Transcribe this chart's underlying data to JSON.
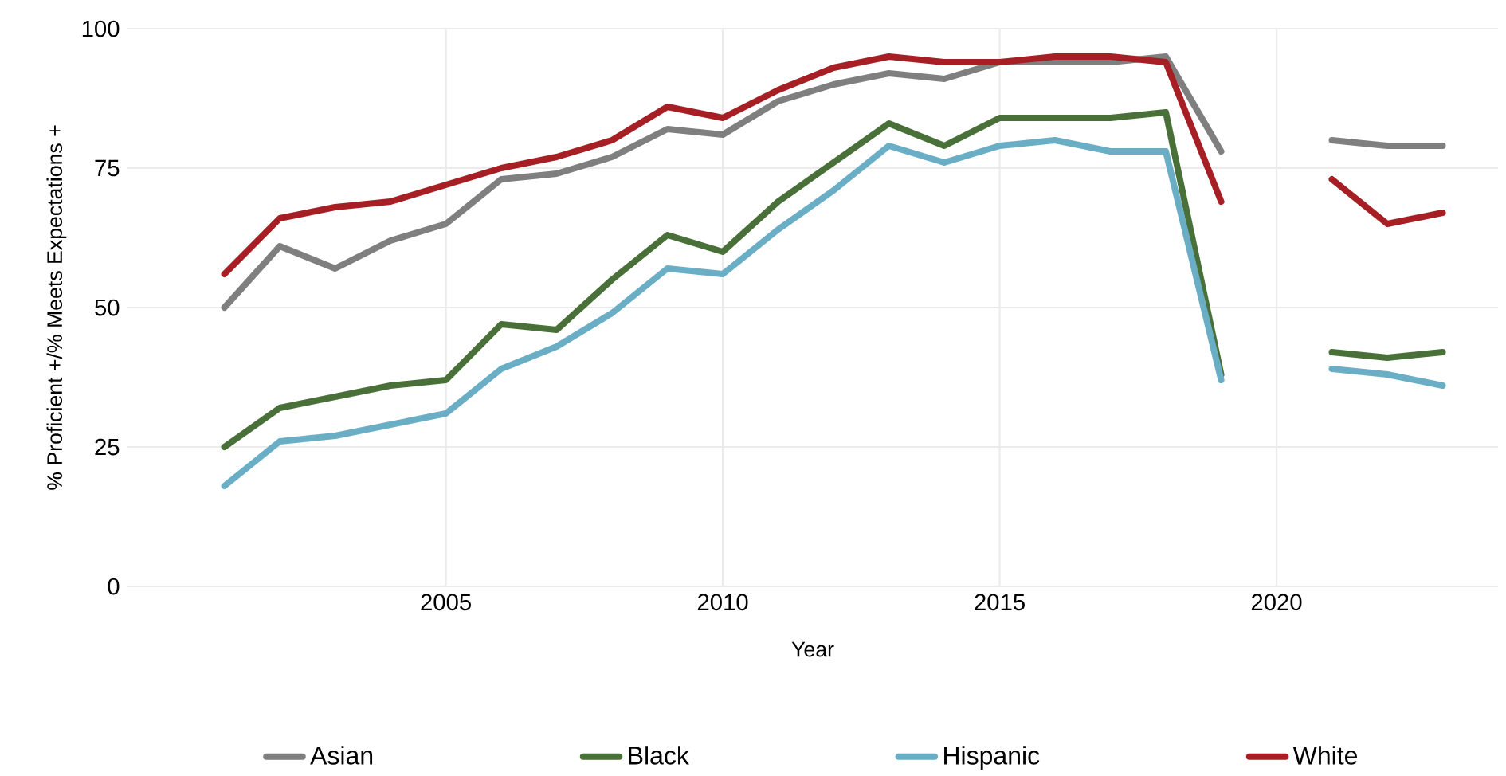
{
  "chart_data": {
    "type": "line",
    "xlabel": "Year",
    "ylabel": "% Proficient +/% Meets Expectations +",
    "x": [
      2001,
      2002,
      2003,
      2004,
      2005,
      2006,
      2007,
      2008,
      2009,
      2010,
      2011,
      2012,
      2013,
      2014,
      2015,
      2016,
      2017,
      2018,
      2019,
      2020,
      2021,
      2022,
      2023
    ],
    "series": [
      {
        "name": "Asian",
        "color": "#7f7f7f",
        "values": [
          50,
          61,
          57,
          62,
          65,
          73,
          74,
          77,
          82,
          81,
          87,
          90,
          92,
          91,
          94,
          94,
          94,
          95,
          78,
          null,
          80,
          79,
          79
        ]
      },
      {
        "name": "Black",
        "color": "#4a7039",
        "values": [
          25,
          32,
          34,
          36,
          37,
          47,
          46,
          55,
          63,
          60,
          69,
          76,
          83,
          79,
          84,
          84,
          84,
          85,
          38,
          null,
          42,
          41,
          42
        ]
      },
      {
        "name": "Hispanic",
        "color": "#6aaec6",
        "values": [
          18,
          26,
          27,
          29,
          31,
          39,
          43,
          49,
          57,
          56,
          64,
          71,
          79,
          76,
          79,
          80,
          78,
          78,
          37,
          null,
          39,
          38,
          36
        ]
      },
      {
        "name": "White",
        "color": "#a61f24",
        "values": [
          56,
          66,
          68,
          69,
          72,
          75,
          77,
          80,
          86,
          84,
          89,
          93,
          95,
          94,
          94,
          95,
          95,
          94,
          69,
          null,
          73,
          65,
          67
        ]
      }
    ],
    "xlim": [
      1999.25,
      2024
    ],
    "ylim": [
      0,
      100
    ],
    "xticks": [
      2005,
      2010,
      2015,
      2020
    ],
    "yticks": [
      0,
      25,
      50,
      75,
      100
    ],
    "grid": true,
    "legend": "bottom",
    "marker": "none",
    "line_style": "solid"
  }
}
